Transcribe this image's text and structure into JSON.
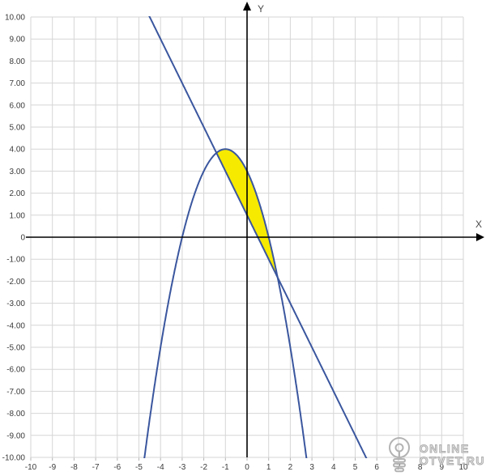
{
  "figure": {
    "bg_color": "#ffffff",
    "grid_color": "#d6d6d6",
    "tick_color": "#b5b5b5",
    "axis_color": "#000000",
    "label_color": "#3a3a3a",
    "axis_letter_color": "#4a4a4a",
    "x_axis_label": "X",
    "y_axis_label": "Y",
    "x_tick_labels": [
      "-10",
      "-9",
      "-8",
      "-7",
      "-6",
      "-5",
      "-4",
      "-3",
      "-2",
      "-1",
      "0",
      "1",
      "2",
      "3",
      "4",
      "5",
      "6",
      "7",
      "8",
      "9",
      "10"
    ],
    "y_tick_labels": [
      "10.00",
      "9.00",
      "8.00",
      "7.00",
      "6.00",
      "5.00",
      "4.00",
      "3.00",
      "2.00",
      "1.00",
      "0",
      "-1.00",
      "-2.00",
      "-3.00",
      "-4.00",
      "-5.00",
      "-6.00",
      "-7.00",
      "-8.00",
      "-9.00",
      "-10.00"
    ]
  },
  "chart_data": {
    "type": "line",
    "title": "",
    "xlabel": "X",
    "ylabel": "Y",
    "xlim": [
      -10,
      10
    ],
    "ylim": [
      -10,
      10
    ],
    "grid": true,
    "grid_step": 1,
    "curve_color": "#3a569e",
    "series": [
      {
        "name": "parabola",
        "kind": "quadratic",
        "a": -1,
        "b": -2,
        "c": 3,
        "equation": "y = -x^2 - 2x + 3",
        "vertex": [
          -1,
          4
        ],
        "x_roots": [
          -3,
          1
        ],
        "x_visible": [
          -4.88,
          2.88
        ],
        "color": "#3a569e"
      },
      {
        "name": "line",
        "kind": "linear",
        "m": -2,
        "b": 1,
        "equation": "y = -2x + 1",
        "x_visible": [
          -4.62,
          5.62
        ],
        "color": "#3a569e"
      }
    ],
    "intersections": [
      {
        "x": -1.41421,
        "y": 3.82843
      },
      {
        "x": 1.41421,
        "y": -1.82843
      }
    ],
    "shaded_region": {
      "description": "area enclosed between parabola and line",
      "upper_series": 0,
      "lower_series": 1,
      "x_from": -1.41421,
      "x_to": 1.41421,
      "color": "#f6ea00"
    }
  },
  "watermark": {
    "icon": "lightbulb-icon",
    "line1": "ONLINE",
    "line2": "OTVET.RU"
  }
}
